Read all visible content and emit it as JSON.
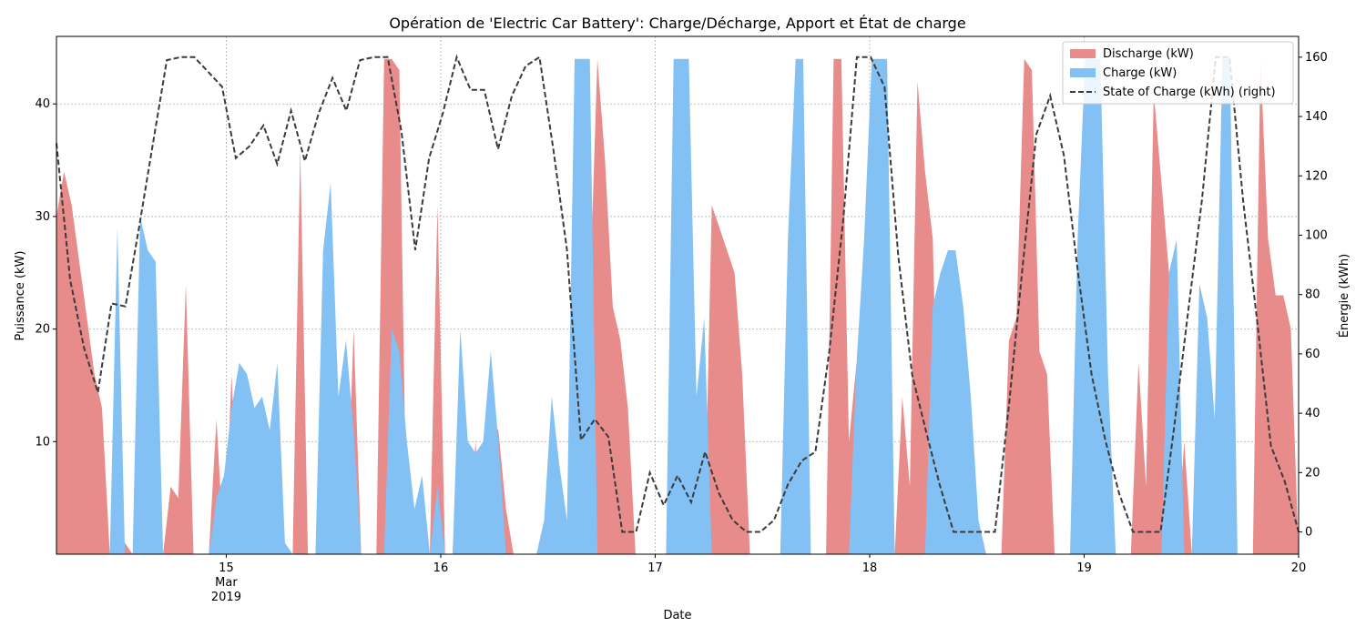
{
  "chart_data": {
    "type": "area",
    "title": "Opération de 'Electric Car Battery': Charge/Décharge, Apport et État de charge",
    "xlabel": "Date",
    "ylabel_left": "Puissance (kW)",
    "ylabel_right": "Énergie (kWh)",
    "x_range": [
      "2019-03-14 05:00",
      "2019-03-20 00:00"
    ],
    "ylim_left": [
      0,
      46
    ],
    "ylim_right": [
      -7.5,
      167
    ],
    "y_ticks_left": [
      10,
      20,
      30,
      40
    ],
    "y_ticks_right": [
      0,
      20,
      40,
      60,
      80,
      100,
      120,
      140,
      160
    ],
    "x_ticks": [
      {
        "date": "2019-03-15",
        "label": "15",
        "sub": [
          "Mar",
          "2019"
        ]
      },
      {
        "date": "2019-03-16",
        "label": "16"
      },
      {
        "date": "2019-03-17",
        "label": "17"
      },
      {
        "date": "2019-03-18",
        "label": "18"
      },
      {
        "date": "2019-03-19",
        "label": "19"
      },
      {
        "date": "2019-03-20",
        "label": "20"
      }
    ],
    "grid": true,
    "legend_position": "top-right",
    "legend": [
      "Discharge (kW)",
      "Charge (kW)",
      "State of Charge (kWh) (right)"
    ],
    "colors": {
      "discharge": "#e88b8b",
      "charge": "#83c1f5",
      "soc": "#3b3b3b"
    },
    "series": [
      {
        "name": "Discharge (kW)",
        "axis": "left",
        "points": [
          [
            "2019-03-14 05:00",
            30
          ],
          [
            "2019-03-14 06:00",
            34
          ],
          [
            "2019-03-14 07:00",
            31
          ],
          [
            "2019-03-14 08:00",
            26
          ],
          [
            "2019-03-14 09:00",
            21
          ],
          [
            "2019-03-14 10:00",
            16
          ],
          [
            "2019-03-14 11:00",
            13
          ],
          [
            "2019-03-14 12:00",
            0
          ],
          [
            "2019-03-14 13:00",
            0
          ],
          [
            "2019-03-14 14:00",
            1
          ],
          [
            "2019-03-14 15:00",
            0
          ],
          [
            "2019-03-14 16:00",
            0
          ],
          [
            "2019-03-14 17:00",
            0
          ],
          [
            "2019-03-14 18:00",
            0
          ],
          [
            "2019-03-14 19:00",
            0
          ],
          [
            "2019-03-14 20:00",
            0
          ],
          [
            "2019-03-14 21:00",
            0
          ],
          [
            "2019-03-14 22:00",
            0
          ],
          [
            "2019-03-14 23:00",
            0
          ],
          [
            "2019-03-15 00:00",
            0
          ],
          [
            "2019-03-15 01:00",
            0
          ],
          [
            "2019-03-15 02:00",
            0
          ],
          [
            "2019-03-14 18:00",
            0
          ],
          [
            "2019-03-14 19:00",
            0
          ],
          [
            "2019-03-14 20:00",
            0
          ],
          [
            "2019-03-14 17:00",
            0
          ],
          [
            "2019-03-14 22:00",
            0
          ],
          [
            "2019-03-14 23:00",
            0
          ]
        ]
      },
      {
        "name": "Charge (kW)",
        "axis": "left",
        "points": [
          [
            "2019-03-14 05:00",
            0
          ]
        ]
      },
      {
        "name": "State of Charge (kWh) (right)",
        "axis": "right",
        "points": [
          [
            "2019-03-14 05:00",
            131
          ]
        ]
      }
    ]
  }
}
